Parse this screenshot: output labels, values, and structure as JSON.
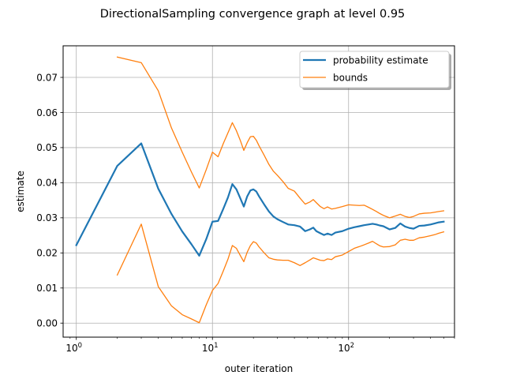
{
  "chart_data": {
    "type": "line",
    "title": "DirectionalSampling convergence graph at level 0.95",
    "xlabel": "outer iteration",
    "ylabel": "estimate",
    "xscale": "log",
    "xlim": [
      0.8,
      600
    ],
    "ylim": [
      -0.004,
      0.079
    ],
    "xticks": [
      {
        "value": 1,
        "label": "10",
        "exp": "0"
      },
      {
        "value": 10,
        "label": "10",
        "exp": "1"
      },
      {
        "value": 100,
        "label": "10",
        "exp": "2"
      }
    ],
    "yticks": [
      {
        "value": 0.0,
        "label": "0.00"
      },
      {
        "value": 0.01,
        "label": "0.01"
      },
      {
        "value": 0.02,
        "label": "0.02"
      },
      {
        "value": 0.03,
        "label": "0.03"
      },
      {
        "value": 0.04,
        "label": "0.04"
      },
      {
        "value": 0.05,
        "label": "0.05"
      },
      {
        "value": 0.06,
        "label": "0.06"
      },
      {
        "value": 0.07,
        "label": "0.07"
      }
    ],
    "grid": true,
    "legend_position": "top-right",
    "series": [
      {
        "name": "probability estimate",
        "color": "#1f77b4",
        "linewidth": 2.2,
        "points": [
          [
            1,
            0.0222
          ],
          [
            2,
            0.0448
          ],
          [
            3,
            0.0512
          ],
          [
            4,
            0.0383
          ],
          [
            5,
            0.0311
          ],
          [
            6,
            0.0261
          ],
          [
            7,
            0.0225
          ],
          [
            8,
            0.0192
          ],
          [
            9,
            0.0239
          ],
          [
            10,
            0.0289
          ],
          [
            11,
            0.0291
          ],
          [
            12,
            0.0325
          ],
          [
            13,
            0.0358
          ],
          [
            14,
            0.0396
          ],
          [
            15,
            0.0381
          ],
          [
            16,
            0.0356
          ],
          [
            17,
            0.0332
          ],
          [
            18,
            0.0361
          ],
          [
            19,
            0.0378
          ],
          [
            20,
            0.0381
          ],
          [
            21,
            0.0375
          ],
          [
            22,
            0.0361
          ],
          [
            24,
            0.0338
          ],
          [
            26,
            0.0318
          ],
          [
            28,
            0.0304
          ],
          [
            30,
            0.0296
          ],
          [
            33,
            0.0288
          ],
          [
            36,
            0.0281
          ],
          [
            40,
            0.0279
          ],
          [
            44,
            0.0275
          ],
          [
            48,
            0.0262
          ],
          [
            52,
            0.0267
          ],
          [
            55,
            0.0272
          ],
          [
            58,
            0.0262
          ],
          [
            62,
            0.0256
          ],
          [
            66,
            0.0251
          ],
          [
            70,
            0.0255
          ],
          [
            75,
            0.0251
          ],
          [
            80,
            0.0258
          ],
          [
            90,
            0.0262
          ],
          [
            100,
            0.0269
          ],
          [
            110,
            0.0273
          ],
          [
            120,
            0.0276
          ],
          [
            130,
            0.0279
          ],
          [
            140,
            0.0281
          ],
          [
            150,
            0.0283
          ],
          [
            160,
            0.0281
          ],
          [
            170,
            0.0278
          ],
          [
            180,
            0.0276
          ],
          [
            200,
            0.0267
          ],
          [
            220,
            0.0271
          ],
          [
            240,
            0.0284
          ],
          [
            260,
            0.0275
          ],
          [
            280,
            0.0271
          ],
          [
            300,
            0.0269
          ],
          [
            330,
            0.0277
          ],
          [
            360,
            0.0278
          ],
          [
            400,
            0.0281
          ],
          [
            430,
            0.0284
          ],
          [
            460,
            0.0287
          ],
          [
            500,
            0.0289
          ]
        ]
      },
      {
        "name": "bounds",
        "color": "#ff7f0e",
        "linewidth": 1.3,
        "points": [
          [
            2,
            0.0758
          ],
          [
            3,
            0.0742
          ],
          [
            4,
            0.0662
          ],
          [
            5,
            0.0556
          ],
          [
            6,
            0.0487
          ],
          [
            7,
            0.0431
          ],
          [
            8,
            0.0385
          ],
          [
            9,
            0.0437
          ],
          [
            10,
            0.0487
          ],
          [
            11,
            0.0474
          ],
          [
            12,
            0.0511
          ],
          [
            13,
            0.0542
          ],
          [
            14,
            0.0571
          ],
          [
            15,
            0.0548
          ],
          [
            16,
            0.0521
          ],
          [
            17,
            0.0492
          ],
          [
            18,
            0.0514
          ],
          [
            19,
            0.0531
          ],
          [
            20,
            0.0532
          ],
          [
            21,
            0.0521
          ],
          [
            22,
            0.0505
          ],
          [
            24,
            0.0478
          ],
          [
            26,
            0.0452
          ],
          [
            28,
            0.0433
          ],
          [
            30,
            0.0421
          ],
          [
            33,
            0.0403
          ],
          [
            36,
            0.0384
          ],
          [
            40,
            0.0376
          ],
          [
            44,
            0.0356
          ],
          [
            48,
            0.0339
          ],
          [
            52,
            0.0345
          ],
          [
            55,
            0.0352
          ],
          [
            58,
            0.0343
          ],
          [
            62,
            0.0332
          ],
          [
            66,
            0.0326
          ],
          [
            70,
            0.0331
          ],
          [
            75,
            0.0325
          ],
          [
            80,
            0.0327
          ],
          [
            90,
            0.0332
          ],
          [
            100,
            0.0337
          ],
          [
            110,
            0.0336
          ],
          [
            120,
            0.0335
          ],
          [
            130,
            0.0336
          ],
          [
            140,
            0.033
          ],
          [
            150,
            0.0324
          ],
          [
            160,
            0.0318
          ],
          [
            170,
            0.0312
          ],
          [
            180,
            0.0307
          ],
          [
            200,
            0.03
          ],
          [
            220,
            0.0305
          ],
          [
            240,
            0.031
          ],
          [
            260,
            0.0304
          ],
          [
            280,
            0.0301
          ],
          [
            300,
            0.0304
          ],
          [
            330,
            0.0311
          ],
          [
            360,
            0.0313
          ],
          [
            400,
            0.0314
          ],
          [
            430,
            0.0316
          ],
          [
            460,
            0.0318
          ],
          [
            500,
            0.032
          ]
        ]
      },
      {
        "name": "",
        "color": "#ff7f0e",
        "linewidth": 1.3,
        "points": [
          [
            2,
            0.0137
          ],
          [
            3,
            0.0282
          ],
          [
            4,
            0.0104
          ],
          [
            5,
            0.0049
          ],
          [
            6,
            0.0024
          ],
          [
            7,
            0.0012
          ],
          [
            8,
            0.0001
          ],
          [
            9,
            0.0052
          ],
          [
            10,
            0.0093
          ],
          [
            11,
            0.0113
          ],
          [
            12,
            0.0148
          ],
          [
            13,
            0.0182
          ],
          [
            14,
            0.0221
          ],
          [
            15,
            0.0213
          ],
          [
            16,
            0.0193
          ],
          [
            17,
            0.0175
          ],
          [
            18,
            0.0202
          ],
          [
            19,
            0.0221
          ],
          [
            20,
            0.0232
          ],
          [
            21,
            0.0228
          ],
          [
            22,
            0.0217
          ],
          [
            24,
            0.02
          ],
          [
            26,
            0.0186
          ],
          [
            28,
            0.0182
          ],
          [
            30,
            0.018
          ],
          [
            33,
            0.0179
          ],
          [
            36,
            0.0179
          ],
          [
            40,
            0.0172
          ],
          [
            44,
            0.0164
          ],
          [
            48,
            0.0172
          ],
          [
            52,
            0.018
          ],
          [
            55,
            0.0186
          ],
          [
            58,
            0.0183
          ],
          [
            62,
            0.0179
          ],
          [
            66,
            0.0178
          ],
          [
            70,
            0.0183
          ],
          [
            75,
            0.0181
          ],
          [
            80,
            0.0189
          ],
          [
            90,
            0.0194
          ],
          [
            100,
            0.0204
          ],
          [
            110,
            0.0213
          ],
          [
            120,
            0.0218
          ],
          [
            130,
            0.0223
          ],
          [
            140,
            0.0228
          ],
          [
            150,
            0.0233
          ],
          [
            160,
            0.0226
          ],
          [
            170,
            0.022
          ],
          [
            180,
            0.0217
          ],
          [
            200,
            0.0218
          ],
          [
            220,
            0.0223
          ],
          [
            240,
            0.0236
          ],
          [
            260,
            0.0239
          ],
          [
            280,
            0.0236
          ],
          [
            300,
            0.0236
          ],
          [
            330,
            0.0243
          ],
          [
            360,
            0.0245
          ],
          [
            400,
            0.0249
          ],
          [
            430,
            0.0252
          ],
          [
            460,
            0.0256
          ],
          [
            500,
            0.026
          ]
        ]
      }
    ]
  }
}
